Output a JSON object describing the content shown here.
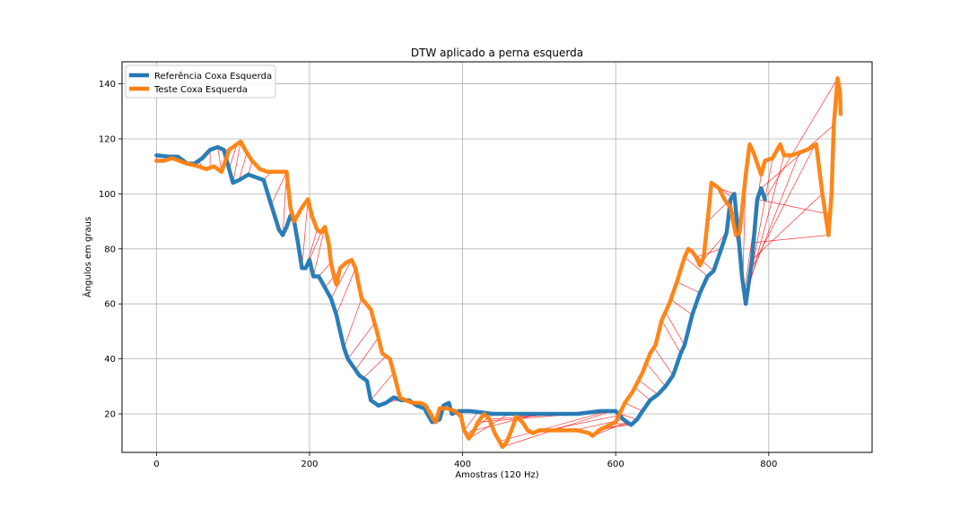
{
  "chart_data": {
    "type": "line",
    "title": "DTW aplicado a perna esquerda",
    "xlabel": "Amostras (120 Hz)",
    "ylabel": "Ângulos em graus",
    "xlim": [
      -45,
      935
    ],
    "ylim": [
      6,
      148
    ],
    "xticks": [
      0,
      200,
      400,
      600,
      800
    ],
    "yticks": [
      20,
      40,
      60,
      80,
      100,
      120,
      140
    ],
    "grid": true,
    "legend_position": "upper-left",
    "series": [
      {
        "name": "Referência Coxa Esquerda",
        "color": "#1f77b4",
        "points": [
          [
            0,
            114
          ],
          [
            15,
            113.5
          ],
          [
            28,
            113.5
          ],
          [
            40,
            111
          ],
          [
            50,
            111
          ],
          [
            60,
            113
          ],
          [
            70,
            116
          ],
          [
            80,
            117
          ],
          [
            88,
            116
          ],
          [
            95,
            109
          ],
          [
            100,
            104
          ],
          [
            108,
            105
          ],
          [
            120,
            107
          ],
          [
            140,
            105
          ],
          [
            150,
            96
          ],
          [
            160,
            87
          ],
          [
            165,
            85
          ],
          [
            170,
            88
          ],
          [
            175,
            92
          ],
          [
            180,
            90
          ],
          [
            185,
            82
          ],
          [
            190,
            73
          ],
          [
            195,
            73
          ],
          [
            200,
            76
          ],
          [
            205,
            70
          ],
          [
            212,
            70
          ],
          [
            220,
            66
          ],
          [
            228,
            62
          ],
          [
            235,
            56
          ],
          [
            240,
            50
          ],
          [
            245,
            44
          ],
          [
            250,
            40
          ],
          [
            260,
            36
          ],
          [
            265,
            34
          ],
          [
            275,
            32
          ],
          [
            280,
            25
          ],
          [
            290,
            23
          ],
          [
            300,
            24
          ],
          [
            310,
            26
          ],
          [
            320,
            25
          ],
          [
            330,
            25
          ],
          [
            340,
            23
          ],
          [
            350,
            22
          ],
          [
            360,
            17
          ],
          [
            370,
            18
          ],
          [
            375,
            23
          ],
          [
            382,
            24
          ],
          [
            386,
            20
          ],
          [
            395,
            21
          ],
          [
            410,
            21
          ],
          [
            440,
            20
          ],
          [
            460,
            20
          ],
          [
            500,
            20
          ],
          [
            550,
            20
          ],
          [
            580,
            21
          ],
          [
            590,
            21
          ],
          [
            600,
            21
          ],
          [
            610,
            18
          ],
          [
            620,
            16
          ],
          [
            628,
            18
          ],
          [
            635,
            21
          ],
          [
            645,
            25
          ],
          [
            655,
            27
          ],
          [
            665,
            30
          ],
          [
            675,
            34
          ],
          [
            685,
            42
          ],
          [
            690,
            45
          ],
          [
            700,
            56
          ],
          [
            710,
            64
          ],
          [
            720,
            70
          ],
          [
            728,
            72
          ],
          [
            738,
            80
          ],
          [
            745,
            86
          ],
          [
            750,
            98
          ],
          [
            755,
            100
          ],
          [
            760,
            86
          ],
          [
            765,
            70
          ],
          [
            770,
            60
          ],
          [
            778,
            76
          ],
          [
            785,
            98
          ],
          [
            790,
            102
          ],
          [
            795,
            98
          ]
        ]
      },
      {
        "name": "Teste Coxa Esquerda",
        "color": "#ff7f0e",
        "points": [
          [
            0,
            112
          ],
          [
            10,
            112
          ],
          [
            20,
            113
          ],
          [
            30,
            112
          ],
          [
            40,
            111
          ],
          [
            55,
            110
          ],
          [
            65,
            109
          ],
          [
            75,
            110
          ],
          [
            85,
            108
          ],
          [
            95,
            116
          ],
          [
            105,
            118
          ],
          [
            110,
            119
          ],
          [
            118,
            115
          ],
          [
            125,
            112
          ],
          [
            135,
            109
          ],
          [
            145,
            108
          ],
          [
            160,
            108
          ],
          [
            170,
            108
          ],
          [
            175,
            95
          ],
          [
            180,
            90
          ],
          [
            190,
            95
          ],
          [
            198,
            98
          ],
          [
            203,
            92
          ],
          [
            210,
            87
          ],
          [
            215,
            86
          ],
          [
            220,
            88
          ],
          [
            225,
            82
          ],
          [
            228,
            75
          ],
          [
            232,
            70
          ],
          [
            235,
            67
          ],
          [
            240,
            73
          ],
          [
            248,
            75
          ],
          [
            255,
            76
          ],
          [
            260,
            73
          ],
          [
            268,
            62
          ],
          [
            280,
            58
          ],
          [
            288,
            50
          ],
          [
            295,
            42
          ],
          [
            305,
            40
          ],
          [
            310,
            35
          ],
          [
            318,
            26
          ],
          [
            325,
            25
          ],
          [
            335,
            24
          ],
          [
            345,
            24
          ],
          [
            352,
            23
          ],
          [
            358,
            20
          ],
          [
            362,
            18
          ],
          [
            365,
            17
          ],
          [
            370,
            22
          ],
          [
            380,
            22
          ],
          [
            390,
            21
          ],
          [
            398,
            19
          ],
          [
            402,
            14
          ],
          [
            408,
            11
          ],
          [
            415,
            14
          ],
          [
            420,
            17
          ],
          [
            428,
            20
          ],
          [
            435,
            18
          ],
          [
            442,
            13
          ],
          [
            448,
            10
          ],
          [
            452,
            8
          ],
          [
            458,
            10
          ],
          [
            465,
            15
          ],
          [
            470,
            19
          ],
          [
            478,
            17
          ],
          [
            485,
            14
          ],
          [
            492,
            13
          ],
          [
            500,
            14
          ],
          [
            550,
            14
          ],
          [
            565,
            13
          ],
          [
            570,
            12
          ],
          [
            578,
            14
          ],
          [
            585,
            15
          ],
          [
            600,
            17
          ],
          [
            605,
            20
          ],
          [
            612,
            24
          ],
          [
            622,
            28
          ],
          [
            635,
            35
          ],
          [
            645,
            42
          ],
          [
            652,
            45
          ],
          [
            660,
            54
          ],
          [
            670,
            60
          ],
          [
            680,
            68
          ],
          [
            690,
            77
          ],
          [
            695,
            80
          ],
          [
            700,
            79
          ],
          [
            705,
            77
          ],
          [
            710,
            74
          ],
          [
            715,
            77
          ],
          [
            720,
            90
          ],
          [
            725,
            104
          ],
          [
            735,
            102
          ],
          [
            742,
            98
          ],
          [
            750,
            95
          ],
          [
            757,
            85
          ],
          [
            762,
            86
          ],
          [
            770,
            107
          ],
          [
            775,
            118
          ],
          [
            780,
            115
          ],
          [
            790,
            107
          ],
          [
            795,
            112
          ],
          [
            805,
            113
          ],
          [
            815,
            118
          ],
          [
            820,
            114
          ],
          [
            830,
            114
          ],
          [
            840,
            115
          ],
          [
            850,
            116
          ],
          [
            862,
            118
          ],
          [
            870,
            100
          ],
          [
            878,
            85
          ],
          [
            882,
            100
          ],
          [
            885,
            125
          ],
          [
            890,
            142
          ],
          [
            893,
            137
          ],
          [
            894,
            129
          ]
        ]
      }
    ],
    "alignment_color": "#ff0000",
    "alignment_pairs": [
      [
        0,
        0
      ],
      [
        20,
        20
      ],
      [
        40,
        40
      ],
      [
        55,
        60
      ],
      [
        70,
        70
      ],
      [
        80,
        85
      ],
      [
        88,
        95
      ],
      [
        95,
        105
      ],
      [
        100,
        110
      ],
      [
        108,
        118
      ],
      [
        120,
        125
      ],
      [
        140,
        150
      ],
      [
        150,
        170
      ],
      [
        165,
        170
      ],
      [
        180,
        180
      ],
      [
        190,
        198
      ],
      [
        195,
        210
      ],
      [
        200,
        215
      ],
      [
        205,
        220
      ],
      [
        212,
        228
      ],
      [
        220,
        248
      ],
      [
        228,
        255
      ],
      [
        235,
        260
      ],
      [
        245,
        268
      ],
      [
        250,
        285
      ],
      [
        260,
        290
      ],
      [
        270,
        300
      ],
      [
        280,
        310
      ],
      [
        290,
        318
      ],
      [
        300,
        322
      ],
      [
        310,
        325
      ],
      [
        320,
        330
      ],
      [
        330,
        340
      ],
      [
        340,
        345
      ],
      [
        350,
        352
      ],
      [
        360,
        360
      ],
      [
        370,
        365
      ],
      [
        375,
        370
      ],
      [
        382,
        375
      ],
      [
        386,
        380
      ],
      [
        395,
        390
      ],
      [
        400,
        398
      ],
      [
        420,
        402
      ],
      [
        440,
        405
      ],
      [
        460,
        408
      ],
      [
        500,
        415
      ],
      [
        550,
        420
      ],
      [
        580,
        435
      ],
      [
        590,
        448
      ],
      [
        595,
        452
      ],
      [
        600,
        470
      ],
      [
        605,
        492
      ],
      [
        610,
        545
      ],
      [
        615,
        570
      ],
      [
        618,
        578
      ],
      [
        620,
        585
      ],
      [
        622,
        595
      ],
      [
        628,
        605
      ],
      [
        635,
        612
      ],
      [
        645,
        625
      ],
      [
        655,
        630
      ],
      [
        665,
        640
      ],
      [
        675,
        650
      ],
      [
        685,
        660
      ],
      [
        690,
        665
      ],
      [
        700,
        672
      ],
      [
        710,
        680
      ],
      [
        720,
        690
      ],
      [
        728,
        695
      ],
      [
        738,
        705
      ],
      [
        745,
        712
      ],
      [
        750,
        720
      ],
      [
        752,
        725
      ],
      [
        755,
        735
      ],
      [
        758,
        742
      ],
      [
        760,
        750
      ],
      [
        763,
        757
      ],
      [
        766,
        770
      ],
      [
        768,
        790
      ],
      [
        770,
        805
      ],
      [
        772,
        820
      ],
      [
        774,
        840
      ],
      [
        776,
        860
      ],
      [
        778,
        870
      ],
      [
        780,
        878
      ],
      [
        785,
        880
      ],
      [
        790,
        885
      ],
      [
        795,
        890
      ]
    ]
  }
}
